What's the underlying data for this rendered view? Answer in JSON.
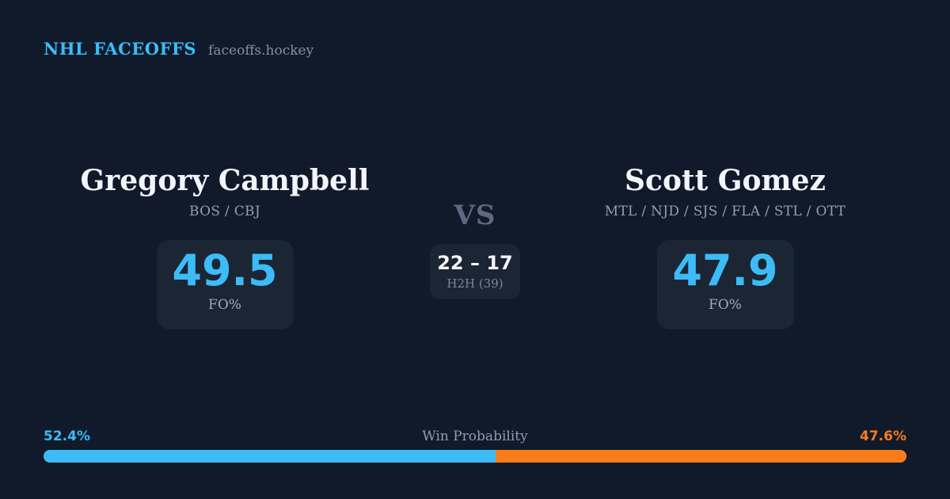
{
  "header": {
    "brand": "NHL FACEOFFS",
    "site": "faceoffs.hockey"
  },
  "players": {
    "left": {
      "name": "Gregory Campbell",
      "teams": "BOS / CBJ",
      "fo_pct": "49.5",
      "fo_label": "FO%"
    },
    "right": {
      "name": "Scott Gomez",
      "teams": "MTL / NJD / SJS / FLA / STL / OTT",
      "fo_pct": "47.9",
      "fo_label": "FO%"
    }
  },
  "matchup": {
    "vs_label": "VS",
    "h2h_score": "22 – 17",
    "h2h_label": "H2H (39)"
  },
  "win_probability": {
    "label": "Win Probability",
    "left_value": "52.4%",
    "right_value": "47.6%",
    "left_pct": 52.4,
    "right_pct": 47.6
  },
  "colors": {
    "background": "#111a2b",
    "card_background": "#1b2534",
    "accent_blue": "#3cbcf7",
    "accent_orange": "#f97c1a",
    "text_primary": "#f2f5fa",
    "text_muted": "#919eb3"
  }
}
